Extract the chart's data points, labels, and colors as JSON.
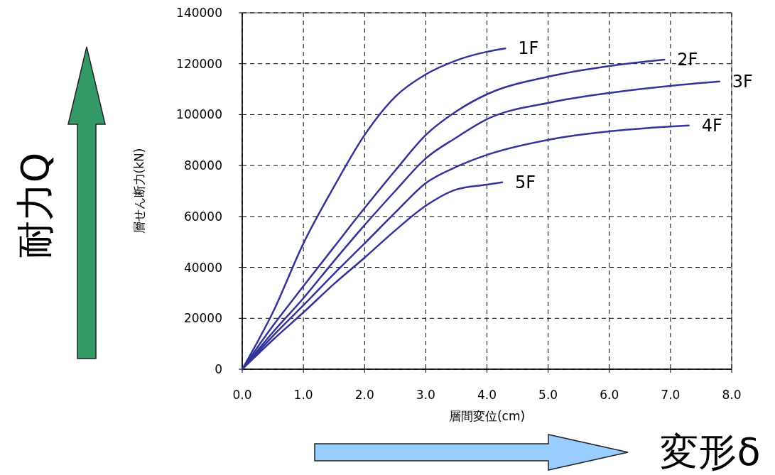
{
  "chart_data": {
    "type": "line",
    "xlabel": "層間変位(cm)",
    "ylabel": "層せん断力(kN)",
    "xlim": [
      0,
      8
    ],
    "ylim": [
      0,
      140000
    ],
    "xticks": [
      {
        "value": 0,
        "label": "0.0"
      },
      {
        "value": 1,
        "label": "1.0"
      },
      {
        "value": 2,
        "label": "2.0"
      },
      {
        "value": 3,
        "label": "3.0"
      },
      {
        "value": 4,
        "label": "4.0"
      },
      {
        "value": 5,
        "label": "5.0"
      },
      {
        "value": 6,
        "label": "6.0"
      },
      {
        "value": 7,
        "label": "7.0"
      },
      {
        "value": 8,
        "label": "8.0"
      }
    ],
    "yticks": [
      0,
      20000,
      40000,
      60000,
      80000,
      100000,
      120000,
      140000
    ],
    "grid": true,
    "marker": "none",
    "line_style": "solid",
    "annotations": [
      "耐力Q",
      "変形δ"
    ],
    "series": [
      {
        "name": "1F",
        "color": "#333399",
        "x": [
          0,
          0.5,
          1,
          1.5,
          2,
          2.5,
          3,
          3.5,
          4,
          4.3
        ],
        "values": [
          0,
          22300,
          49400,
          71700,
          92000,
          107000,
          115800,
          121300,
          124700,
          126000
        ]
      },
      {
        "name": "2F",
        "color": "#333399",
        "x": [
          0,
          0.5,
          1,
          1.5,
          2,
          2.5,
          3,
          3.5,
          4,
          5,
          6,
          6.9
        ],
        "values": [
          0,
          17000,
          32600,
          48000,
          63300,
          78000,
          92000,
          101300,
          108000,
          114900,
          119100,
          121600
        ]
      },
      {
        "name": "3F",
        "color": "#333399",
        "x": [
          0,
          0.5,
          1,
          1.5,
          2,
          2.5,
          3,
          3.5,
          4,
          5,
          6,
          7,
          7.8
        ],
        "values": [
          0,
          14500,
          27900,
          42500,
          56600,
          70000,
          82800,
          91000,
          98200,
          104600,
          108500,
          111300,
          113000
        ]
      },
      {
        "name": "4F",
        "color": "#333399",
        "x": [
          0,
          0.5,
          1,
          1.5,
          2,
          2.5,
          3,
          3.5,
          4,
          5,
          6,
          7.3
        ],
        "values": [
          0,
          13000,
          25100,
          37500,
          49400,
          61500,
          73100,
          79500,
          84200,
          90100,
          93400,
          95700
        ]
      },
      {
        "name": "5F",
        "color": "#333399",
        "x": [
          0,
          0.5,
          1,
          1.5,
          2,
          2.5,
          3,
          3.5,
          4,
          4.25
        ],
        "values": [
          0,
          11500,
          22300,
          33500,
          43800,
          54500,
          64200,
          70600,
          72500,
          73400
        ]
      }
    ]
  }
}
